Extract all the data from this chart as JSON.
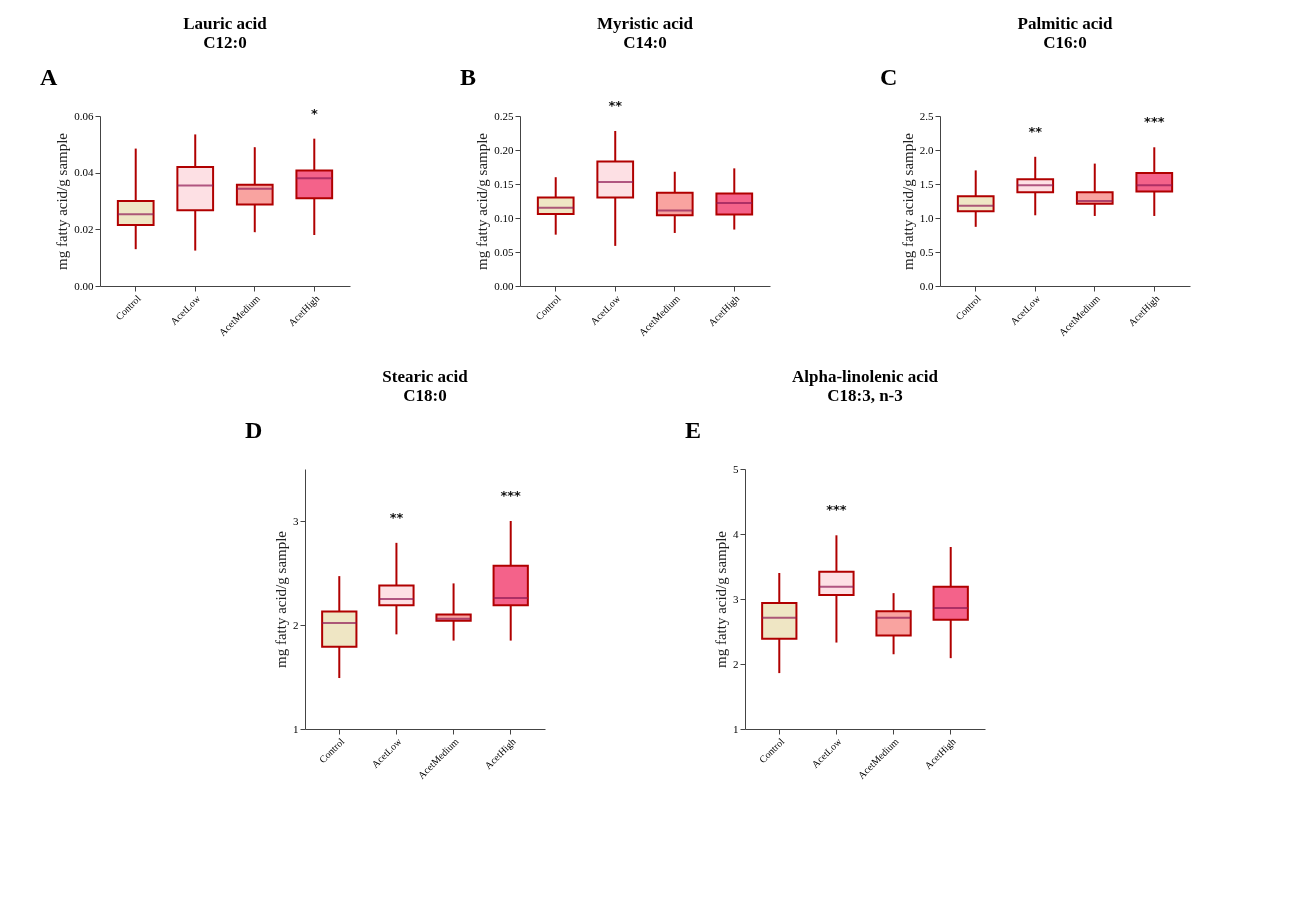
{
  "chart_data": [
    {
      "type": "box",
      "title": "Lauric acid",
      "subtitle": "C12:0",
      "ylabel": "mg fatty acid/g sample",
      "categories": [
        "Control",
        "AcetLow",
        "AcetMedium",
        "AcetHigh"
      ],
      "colors": [
        "#efe6c4",
        "#fde0e4",
        "#f9a3a0",
        "#f4628a"
      ],
      "ylim": [
        0,
        0.06
      ],
      "yticks": [
        {
          "value": 0,
          "label": "0.00"
        },
        0.02,
        0.04,
        0.06
      ],
      "grid": false,
      "boxes": [
        {
          "low": 0.013,
          "q1": 0.0215,
          "median": 0.0253,
          "q3": 0.03,
          "high": 0.0485
        },
        {
          "low": 0.0125,
          "q1": 0.0267,
          "median": 0.0355,
          "q3": 0.042,
          "high": 0.0535
        },
        {
          "low": 0.019,
          "q1": 0.0288,
          "median": 0.0343,
          "q3": 0.0357,
          "high": 0.049
        },
        {
          "low": 0.018,
          "q1": 0.031,
          "median": 0.038,
          "q3": 0.0408,
          "high": 0.052
        }
      ],
      "annotations": [
        "A",
        {
          "text": "*",
          "x": "AcetHigh",
          "y": 0.052
        }
      ]
    },
    {
      "type": "box",
      "title": "Myristic acid",
      "subtitle": "C14:0",
      "ylabel": "mg fatty acid/g sample",
      "categories": [
        "Control",
        "AcetLow",
        "AcetMedium",
        "AcetHigh"
      ],
      "colors": [
        "#efe6c4",
        "#fde0e4",
        "#f9a3a0",
        "#f4628a"
      ],
      "ylim": [
        0,
        0.25
      ],
      "yticks": [
        {
          "value": 0,
          "label": "0.00"
        },
        0.05,
        {
          "value": 0.1,
          "label": "0.10"
        },
        0.15,
        {
          "value": 0.2,
          "label": "0.20"
        },
        0.25
      ],
      "grid": false,
      "boxes": [
        {
          "low": 0.0755,
          "q1": 0.106,
          "median": 0.115,
          "q3": 0.13,
          "high": 0.16
        },
        {
          "low": 0.059,
          "q1": 0.13,
          "median": 0.153,
          "q3": 0.183,
          "high": 0.228
        },
        {
          "low": 0.078,
          "q1": 0.104,
          "median": 0.111,
          "q3": 0.137,
          "high": 0.168
        },
        {
          "low": 0.083,
          "q1": 0.105,
          "median": 0.122,
          "q3": 0.136,
          "high": 0.173
        }
      ],
      "annotations": [
        "B",
        {
          "text": "**",
          "x": "AcetLow",
          "y": 0.228
        }
      ]
    },
    {
      "type": "box",
      "title": "Palmitic acid",
      "subtitle": "C16:0",
      "ylabel": "mg fatty acid/g sample",
      "categories": [
        "Control",
        "AcetLow",
        "AcetMedium",
        "AcetHigh"
      ],
      "colors": [
        "#efe6c4",
        "#fde0e4",
        "#f9a3a0",
        "#f4628a"
      ],
      "ylim": [
        0,
        2.5
      ],
      "yticks": [
        {
          "value": 0,
          "label": "0.0"
        },
        0.5,
        {
          "value": 1,
          "label": "1.0"
        },
        1.5,
        {
          "value": 2,
          "label": "2.0"
        },
        2.5
      ],
      "grid": false,
      "boxes": [
        {
          "low": 0.87,
          "q1": 1.1,
          "median": 1.18,
          "q3": 1.32,
          "high": 1.7
        },
        {
          "low": 1.04,
          "q1": 1.38,
          "median": 1.48,
          "q3": 1.57,
          "high": 1.9
        },
        {
          "low": 1.03,
          "q1": 1.21,
          "median": 1.25,
          "q3": 1.38,
          "high": 1.8
        },
        {
          "low": 1.03,
          "q1": 1.39,
          "median": 1.48,
          "q3": 1.66,
          "high": 2.04
        }
      ],
      "annotations": [
        "C",
        {
          "text": "**",
          "x": "AcetLow",
          "y": 1.9
        },
        {
          "text": "***",
          "x": "AcetHigh",
          "y": 2.04
        }
      ]
    },
    {
      "type": "box",
      "title": "Stearic acid",
      "subtitle": "C18:0",
      "ylabel": "mg fatty acid/g sample",
      "categories": [
        "Control",
        "AcetLow",
        "AcetMedium",
        "AcetHigh"
      ],
      "colors": [
        "#efe6c4",
        "#fde0e4",
        "#f9a3a0",
        "#f4628a"
      ],
      "ylim": [
        1,
        3.5
      ],
      "yticks": [
        1,
        2,
        3
      ],
      "grid": false,
      "boxes": [
        {
          "low": 1.49,
          "q1": 1.79,
          "median": 2.02,
          "q3": 2.13,
          "high": 2.47
        },
        {
          "low": 1.91,
          "q1": 2.19,
          "median": 2.25,
          "q3": 2.38,
          "high": 2.79
        },
        {
          "low": 1.85,
          "q1": 2.04,
          "median": 2.06,
          "q3": 2.1,
          "high": 2.4
        },
        {
          "low": 1.85,
          "q1": 2.19,
          "median": 2.26,
          "q3": 2.57,
          "high": 3.0
        }
      ],
      "annotations": [
        "D",
        {
          "text": "**",
          "x": "AcetLow",
          "y": 2.79
        },
        {
          "text": "***",
          "x": "AcetHigh",
          "y": 3.0
        }
      ]
    },
    {
      "type": "box",
      "title": "Alpha-linolenic acid",
      "subtitle": "C18:3, n-3",
      "ylabel": "mg fatty acid/g sample",
      "categories": [
        "Control",
        "AcetLow",
        "AcetMedium",
        "AcetHigh"
      ],
      "colors": [
        "#efe6c4",
        "#fde0e4",
        "#f9a3a0",
        "#f4628a"
      ],
      "ylim": [
        1,
        5
      ],
      "yticks": [
        1,
        2,
        3,
        4,
        5
      ],
      "grid": false,
      "boxes": [
        {
          "low": 1.86,
          "q1": 2.39,
          "median": 2.71,
          "q3": 2.94,
          "high": 3.4
        },
        {
          "low": 2.33,
          "q1": 3.06,
          "median": 3.19,
          "q3": 3.42,
          "high": 3.98
        },
        {
          "low": 2.15,
          "q1": 2.44,
          "median": 2.71,
          "q3": 2.81,
          "high": 3.09
        },
        {
          "low": 2.09,
          "q1": 2.68,
          "median": 2.86,
          "q3": 3.19,
          "high": 3.8
        }
      ],
      "annotations": [
        "E",
        {
          "text": "***",
          "x": "AcetLow",
          "y": 3.98
        }
      ]
    }
  ]
}
